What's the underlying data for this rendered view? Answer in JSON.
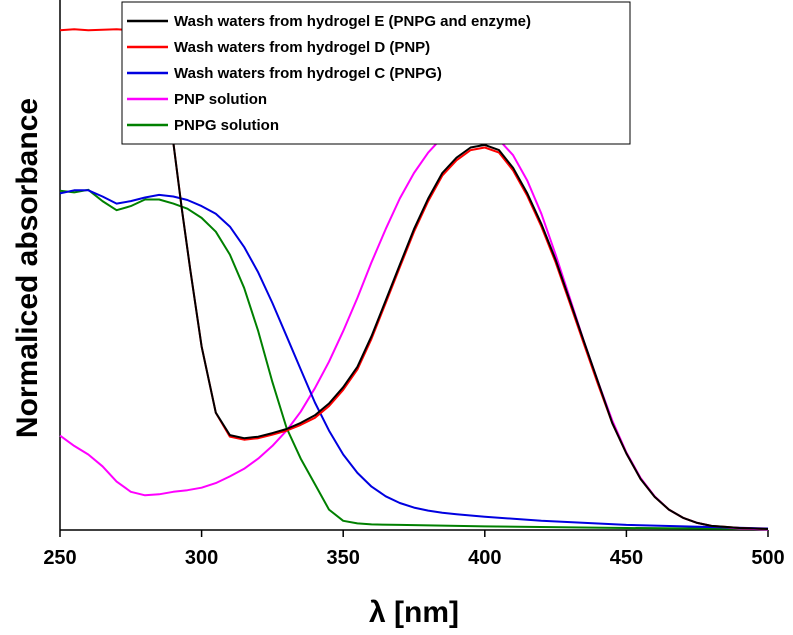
{
  "chart_data": {
    "type": "line",
    "xlabel": "λ [nm]",
    "ylabel": "Normaliced absorbance",
    "xlim": [
      250,
      500
    ],
    "ylim": [
      0,
      1.0
    ],
    "xticks": [
      "250",
      "300",
      "350",
      "400",
      "450",
      "500"
    ],
    "y_ticks_shown": false,
    "grid": false,
    "legend_position": "top-left",
    "series": [
      {
        "name": "Wash waters from hydrogel E (PNPG and enzyme)",
        "color": "#000000",
        "x": [
          290,
          293,
          296,
          300,
          305,
          310,
          315,
          320,
          325,
          330,
          335,
          340,
          345,
          350,
          355,
          360,
          365,
          370,
          375,
          380,
          385,
          390,
          395,
          400,
          405,
          410,
          415,
          420,
          425,
          430,
          435,
          440,
          445,
          450,
          455,
          460,
          465,
          470,
          475,
          480,
          485,
          490,
          495,
          500
        ],
        "y": [
          0.76,
          0.63,
          0.51,
          0.36,
          0.23,
          0.186,
          0.18,
          0.183,
          0.19,
          0.198,
          0.21,
          0.225,
          0.248,
          0.28,
          0.32,
          0.38,
          0.45,
          0.52,
          0.59,
          0.65,
          0.7,
          0.73,
          0.75,
          0.755,
          0.745,
          0.71,
          0.66,
          0.6,
          0.53,
          0.45,
          0.37,
          0.29,
          0.21,
          0.15,
          0.1,
          0.065,
          0.04,
          0.024,
          0.014,
          0.008,
          0.006,
          0.004,
          0.003,
          0.002
        ]
      },
      {
        "name": "Wash waters from hydrogel D (PNP)",
        "color": "#ff0000",
        "x": [
          250,
          255,
          260,
          265,
          270,
          275,
          280,
          285,
          288,
          290,
          293,
          296,
          300,
          305,
          310,
          315,
          320,
          325,
          330,
          335,
          340,
          345,
          350,
          355,
          360,
          365,
          370,
          375,
          380,
          385,
          390,
          395,
          400,
          405,
          410,
          415,
          420,
          425,
          430,
          435,
          440,
          445,
          450,
          455,
          460,
          465,
          470,
          475,
          480,
          485,
          490,
          495,
          500
        ],
        "y": [
          0.98,
          0.982,
          0.98,
          0.981,
          0.982,
          0.98,
          0.982,
          0.981,
          0.9,
          0.76,
          0.63,
          0.51,
          0.36,
          0.23,
          0.183,
          0.177,
          0.18,
          0.187,
          0.195,
          0.206,
          0.22,
          0.243,
          0.275,
          0.315,
          0.375,
          0.445,
          0.515,
          0.585,
          0.645,
          0.695,
          0.725,
          0.745,
          0.75,
          0.74,
          0.705,
          0.655,
          0.595,
          0.525,
          0.445,
          0.365,
          0.285,
          0.21,
          0.15,
          0.1,
          0.065,
          0.04,
          0.024,
          0.014,
          0.008,
          0.006,
          0.004,
          0.003,
          0.002
        ]
      },
      {
        "name": "Wash waters from hydrogel C (PNPG)",
        "color": "#0000e0",
        "x": [
          250,
          255,
          260,
          265,
          270,
          275,
          280,
          285,
          290,
          295,
          300,
          305,
          310,
          315,
          320,
          325,
          330,
          335,
          340,
          345,
          350,
          355,
          360,
          365,
          370,
          375,
          380,
          385,
          390,
          400,
          420,
          450,
          500
        ],
        "y": [
          0.66,
          0.666,
          0.666,
          0.654,
          0.64,
          0.645,
          0.652,
          0.657,
          0.654,
          0.647,
          0.635,
          0.62,
          0.595,
          0.555,
          0.505,
          0.445,
          0.38,
          0.315,
          0.25,
          0.195,
          0.148,
          0.112,
          0.085,
          0.066,
          0.053,
          0.044,
          0.038,
          0.034,
          0.031,
          0.026,
          0.018,
          0.01,
          0.003
        ]
      },
      {
        "name": "PNP solution",
        "color": "#ff00ff",
        "x": [
          250,
          255,
          260,
          265,
          270,
          275,
          280,
          285,
          290,
          295,
          300,
          305,
          310,
          315,
          320,
          325,
          330,
          335,
          340,
          345,
          350,
          355,
          360,
          365,
          370,
          375,
          380,
          385,
          390,
          395,
          400,
          405,
          410,
          415,
          420,
          425,
          430,
          435,
          440,
          445,
          450,
          455,
          460,
          465,
          470,
          475,
          480,
          485,
          490,
          495,
          500
        ],
        "y": [
          0.185,
          0.165,
          0.148,
          0.125,
          0.095,
          0.075,
          0.068,
          0.07,
          0.075,
          0.078,
          0.083,
          0.092,
          0.105,
          0.12,
          0.14,
          0.165,
          0.195,
          0.232,
          0.278,
          0.33,
          0.39,
          0.455,
          0.525,
          0.59,
          0.65,
          0.7,
          0.74,
          0.77,
          0.785,
          0.79,
          0.783,
          0.765,
          0.735,
          0.685,
          0.62,
          0.54,
          0.455,
          0.37,
          0.29,
          0.215,
          0.152,
          0.102,
          0.066,
          0.04,
          0.024,
          0.014,
          0.008,
          0.005,
          0.003,
          0.002,
          0.001
        ]
      },
      {
        "name": "PNPG solution",
        "color": "#008000",
        "x": [
          250,
          255,
          260,
          265,
          270,
          275,
          280,
          285,
          290,
          295,
          300,
          305,
          310,
          315,
          320,
          325,
          330,
          335,
          340,
          345,
          350,
          355,
          360,
          370,
          380,
          400,
          450,
          500
        ],
        "y": [
          0.665,
          0.662,
          0.667,
          0.645,
          0.627,
          0.635,
          0.648,
          0.648,
          0.64,
          0.63,
          0.612,
          0.585,
          0.54,
          0.475,
          0.39,
          0.29,
          0.2,
          0.14,
          0.09,
          0.04,
          0.018,
          0.013,
          0.011,
          0.01,
          0.009,
          0.007,
          0.004,
          0.002
        ]
      }
    ]
  }
}
